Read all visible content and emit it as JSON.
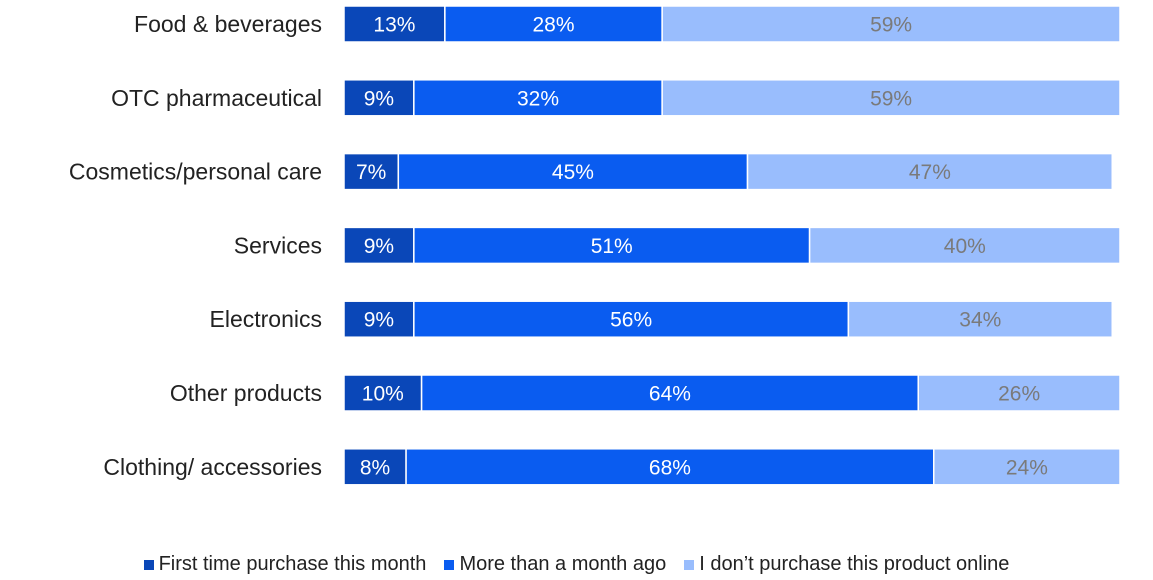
{
  "chart_data": {
    "type": "bar",
    "orientation": "horizontal",
    "stacked": true,
    "percent_stacked": true,
    "categories": [
      "Food & beverages",
      "OTC pharmaceutical",
      "Cosmetics/personal care",
      "Services",
      "Electronics",
      "Other products",
      "Clothing/ accessories"
    ],
    "series": [
      {
        "name": "First time purchase this month",
        "color": "#0a47b8",
        "label_color": "#ffffff",
        "values": [
          13,
          9,
          7,
          9,
          9,
          10,
          8
        ],
        "labels": [
          "13%",
          "9%",
          "7%",
          "9%",
          "9%",
          "10%",
          "8%"
        ]
      },
      {
        "name": "More than a month ago",
        "color": "#0a5cf0",
        "label_color": "#ffffff",
        "values": [
          28,
          32,
          45,
          51,
          56,
          64,
          68
        ],
        "labels": [
          "28%",
          "32%",
          "45%",
          "51%",
          "56%",
          "64%",
          "68%"
        ]
      },
      {
        "name": "I don’t purchase this product online",
        "color": "#99bdfd",
        "label_color": "#7a7a7a",
        "values": [
          59,
          59,
          47,
          40,
          34,
          26,
          24
        ],
        "labels": [
          "59%",
          "59%",
          "47%",
          "40%",
          "34%",
          "26%",
          "24%"
        ]
      }
    ],
    "xlim": [
      0,
      100
    ],
    "grid": false,
    "legend_position": "bottom"
  }
}
